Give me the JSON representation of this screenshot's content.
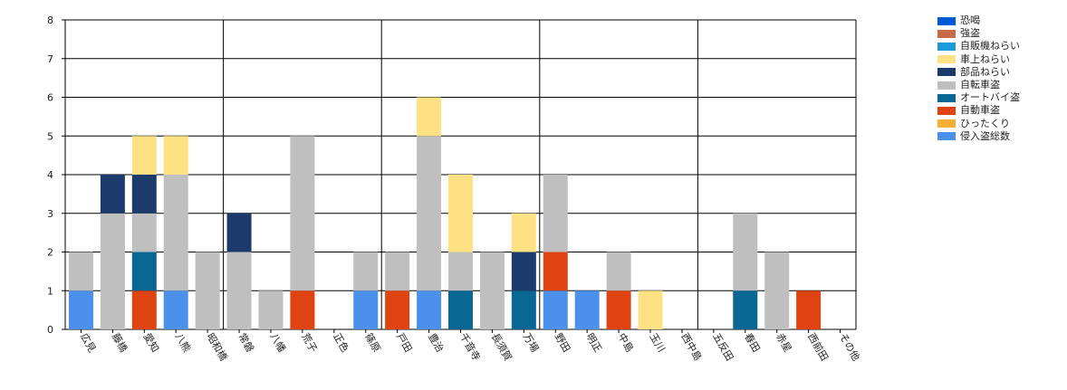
{
  "chart_data": {
    "type": "bar",
    "stacked": true,
    "title": "",
    "xlabel": "",
    "ylabel": "",
    "ylim": [
      0,
      8
    ],
    "yticks": [
      "0",
      "1",
      "2",
      "3",
      "4",
      "5",
      "6",
      "7",
      "8"
    ],
    "grid": true,
    "legend_position": "right",
    "categories": [
      "広見",
      "藤橋",
      "愛知",
      "八熊",
      "昭和橋",
      "常磐",
      "八幡",
      "荒子",
      "正色",
      "篠原",
      "戸田",
      "豊治",
      "千音寺",
      "長須賀",
      "万場",
      "野田",
      "明正",
      "中島",
      "玉川",
      "西中島",
      "五反田",
      "春田",
      "赤星",
      "西前田",
      "その他"
    ],
    "series": [
      {
        "name": "恐喝",
        "color": "#0059d5",
        "values": [
          0,
          0,
          0,
          0,
          0,
          0,
          0,
          0,
          0,
          0,
          0,
          0,
          0,
          0,
          0,
          0,
          0,
          0,
          0,
          0,
          0,
          0,
          0,
          0,
          0
        ]
      },
      {
        "name": "強盗",
        "color": "#c86a46",
        "values": [
          0,
          0,
          0,
          0,
          0,
          0,
          0,
          0,
          0,
          0,
          0,
          0,
          0,
          0,
          0,
          0,
          0,
          0,
          0,
          0,
          0,
          0,
          0,
          0,
          0
        ]
      },
      {
        "name": "自販機ねらい",
        "color": "#1a9ad8",
        "values": [
          0,
          0,
          0,
          0,
          0,
          0,
          0,
          0,
          0,
          0,
          0,
          0,
          0,
          0,
          0,
          0,
          0,
          0,
          0,
          0,
          0,
          0,
          0,
          0,
          0
        ]
      },
      {
        "name": "車上ねらい",
        "color": "#fee182",
        "values": [
          0,
          0,
          1,
          1,
          0,
          0,
          0,
          0,
          0,
          0,
          0,
          1,
          2,
          0,
          1,
          0,
          0,
          0,
          1,
          0,
          0,
          0,
          0,
          0,
          0
        ]
      },
      {
        "name": "部品ねらい",
        "color": "#1d3a6c",
        "values": [
          0,
          1,
          1,
          0,
          0,
          1,
          0,
          0,
          0,
          0,
          0,
          0,
          0,
          0,
          1,
          0,
          0,
          0,
          0,
          0,
          0,
          0,
          0,
          0,
          0
        ]
      },
      {
        "name": "自転車盗",
        "color": "#bfbfbf",
        "values": [
          1,
          3,
          1,
          3,
          2,
          2,
          1,
          4,
          0,
          1,
          1,
          4,
          1,
          2,
          0,
          2,
          0,
          1,
          0,
          0,
          0,
          2,
          2,
          0,
          0
        ]
      },
      {
        "name": "オートバイ盗",
        "color": "#0a6693",
        "values": [
          0,
          0,
          1,
          0,
          0,
          0,
          0,
          0,
          0,
          0,
          0,
          0,
          1,
          0,
          1,
          0,
          0,
          0,
          0,
          0,
          0,
          1,
          0,
          0,
          0
        ]
      },
      {
        "name": "自動車盗",
        "color": "#de4311",
        "values": [
          0,
          0,
          1,
          0,
          0,
          0,
          0,
          1,
          0,
          0,
          1,
          0,
          0,
          0,
          0,
          1,
          0,
          1,
          0,
          0,
          0,
          0,
          0,
          1,
          0
        ]
      },
      {
        "name": "ひったくり",
        "color": "#f5af34",
        "values": [
          0,
          0,
          0,
          0,
          0,
          0,
          0,
          0,
          0,
          0,
          0,
          0,
          0,
          0,
          0,
          0,
          0,
          0,
          0,
          0,
          0,
          0,
          0,
          0,
          0
        ]
      },
      {
        "name": "侵入盗総数",
        "color": "#4b91ec",
        "values": [
          1,
          0,
          0,
          1,
          0,
          0,
          0,
          0,
          0,
          1,
          0,
          1,
          0,
          0,
          0,
          1,
          1,
          0,
          0,
          0,
          0,
          0,
          0,
          0,
          0
        ]
      }
    ]
  }
}
